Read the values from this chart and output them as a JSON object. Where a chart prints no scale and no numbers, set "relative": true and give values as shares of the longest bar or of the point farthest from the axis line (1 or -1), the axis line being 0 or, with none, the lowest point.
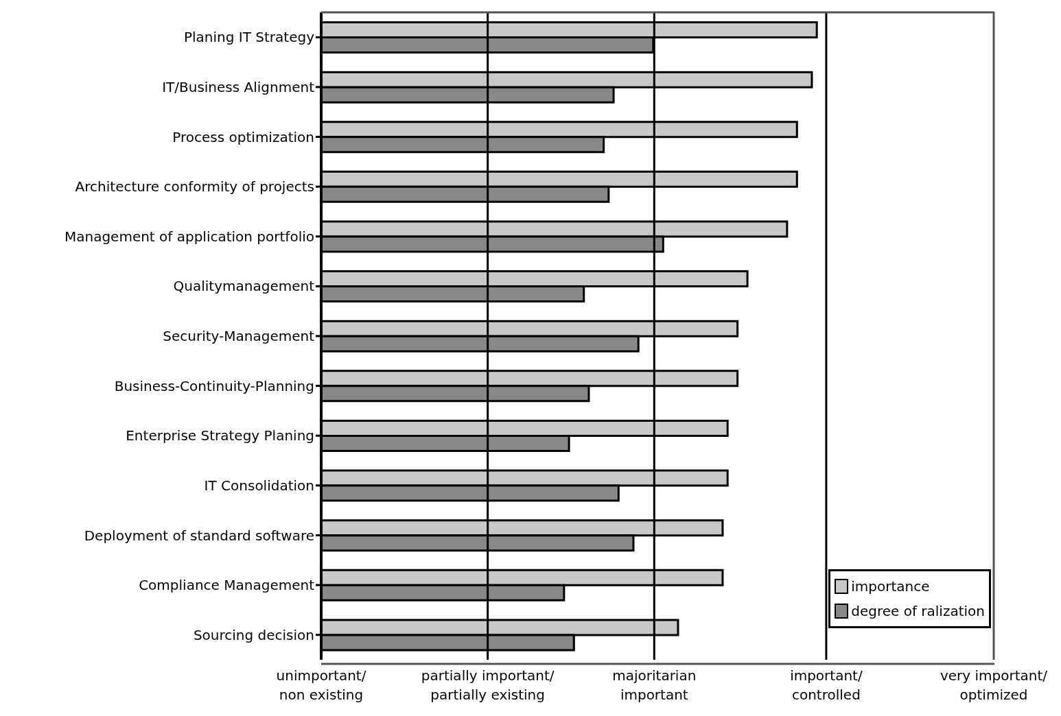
{
  "chart_data": {
    "type": "bar",
    "orientation": "horizontal",
    "relative": true,
    "categories": [
      "Planing IT Strategy",
      "IT/Business Alignment",
      "Process optimization",
      "Architecture conformity of projects",
      "Management of application portfolio",
      "Qualitymanagement",
      "Security-Management",
      "Business-Continuity-Planning",
      "Enterprise Strategy Planing",
      "IT Consolidation",
      "Deployment of standard software",
      "Compliance Management",
      "Sourcing decision"
    ],
    "series": [
      {
        "name": "importance",
        "color": "#c8c8c8",
        "values": [
          1,
          0.99,
          0.96,
          0.96,
          0.94,
          0.86,
          0.84,
          0.84,
          0.82,
          0.82,
          0.81,
          0.81,
          0.72
        ]
      },
      {
        "name": "degree of ralization",
        "color": "#888888",
        "values": [
          0.67,
          0.59,
          0.57,
          0.58,
          0.69,
          0.53,
          0.64,
          0.54,
          0.5,
          0.6,
          0.63,
          0.49,
          0.51
        ]
      }
    ],
    "ref_lines": [
      {
        "axis": "x",
        "value": 0.336,
        "label": "partially important/\npartially existing",
        "color": "#000000"
      },
      {
        "axis": "x",
        "value": 0.672,
        "label": "majoritarian\nimportant",
        "color": "#000000"
      },
      {
        "axis": "x",
        "value": 1.019,
        "label": "important/\ncontrolled",
        "color": "#000000"
      },
      {
        "axis": "x",
        "value": 1.357,
        "label": "very important/\noptimized",
        "color": "#555555"
      }
    ],
    "annotations": [
      "unimportant/\nnon existing"
    ],
    "legend": "bottom right"
  }
}
